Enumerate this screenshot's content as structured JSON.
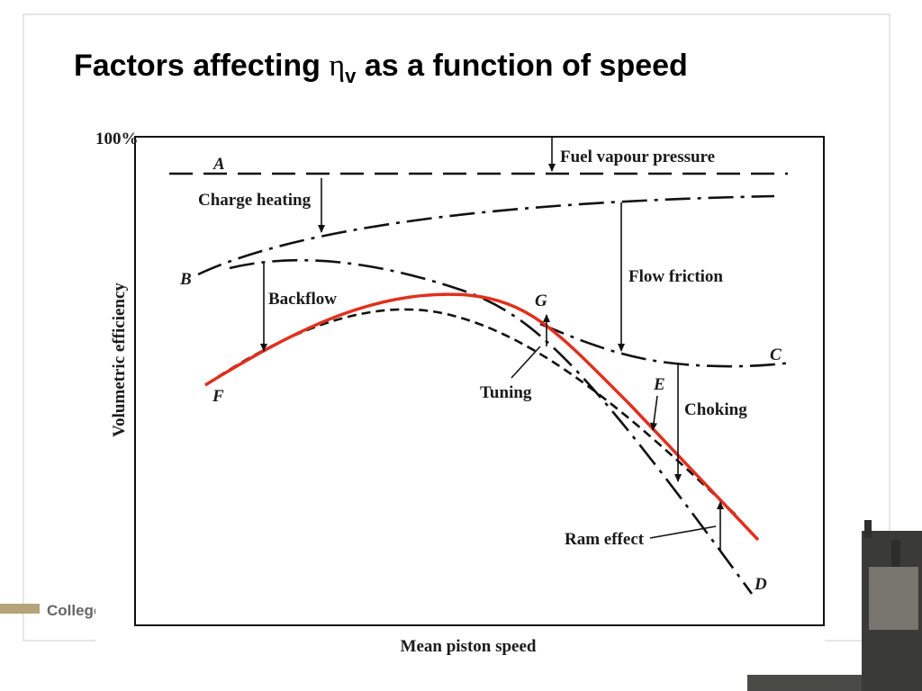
{
  "title": {
    "prefix": "Factors affecting ",
    "symbol": "η",
    "subscript": "v",
    "suffix": " as a function of speed"
  },
  "diagram": {
    "y_max_label": "100%",
    "y_axis_label": "Volumetric efficiency",
    "x_axis_label": "Mean piston speed",
    "curve_labels": {
      "A": "A",
      "B": "B",
      "C": "C",
      "D": "D",
      "E": "E",
      "F": "F",
      "G": "G"
    },
    "annotations": {
      "fuel_vapour_pressure": "Fuel vapour pressure",
      "charge_heating": "Charge heating",
      "backflow": "Backflow",
      "flow_friction": "Flow friction",
      "tuning": "Tuning",
      "choking": "Choking",
      "ram_effect": "Ram effect"
    }
  },
  "footer": {
    "logo_text": "College"
  }
}
